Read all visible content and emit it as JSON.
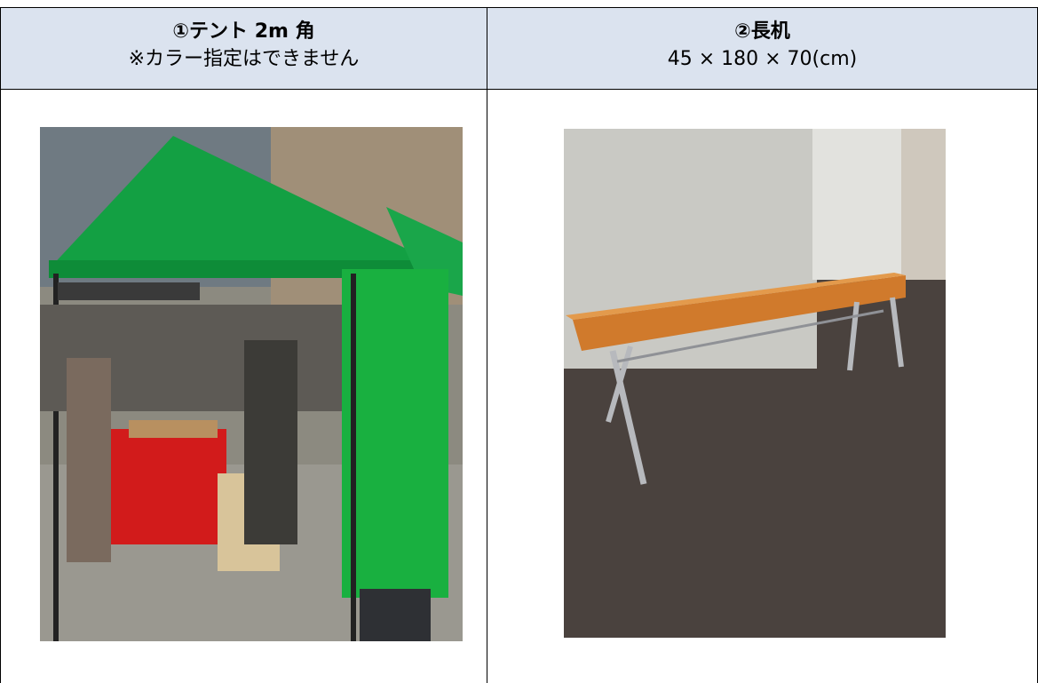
{
  "table": {
    "headers": [
      {
        "title": "①テント 2m 角",
        "note": "※カラー指定はできません"
      },
      {
        "title": "②長机",
        "note": "45 × 180 × 70(cm)"
      }
    ]
  }
}
